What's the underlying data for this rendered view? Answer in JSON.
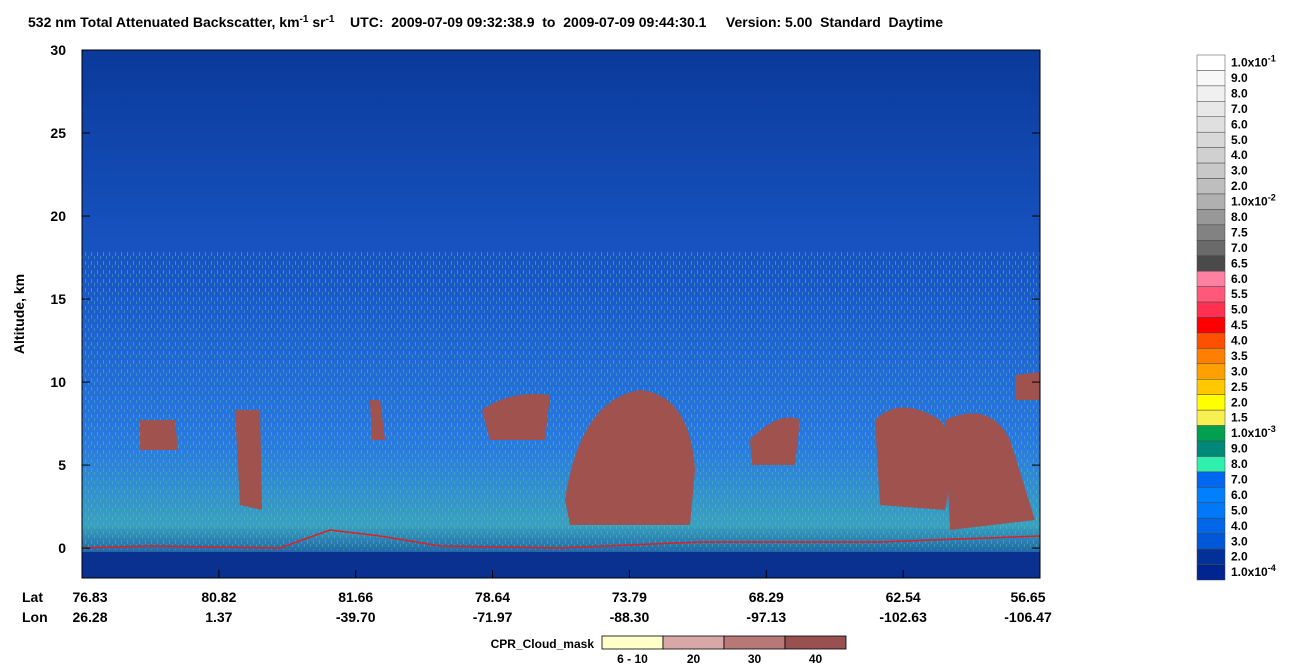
{
  "chart_data": {
    "type": "heatmap",
    "title": [
      {
        "text": "532 nm Total Attenuated Backscatter, km"
      },
      {
        "text": "-1",
        "sup": true
      },
      {
        "text": " sr"
      },
      {
        "text": "-1",
        "sup": true
      },
      {
        "text": "    UTC:  2009-07-09 09:32:38.9  to  2009-07-09 09:44:30.1     Version: 5.00  Standard  Daytime"
      }
    ],
    "y_label": "Altitude, km",
    "ylim": [
      -1.8,
      30
    ],
    "yticks": [
      0,
      5,
      10,
      15,
      20,
      25,
      30
    ],
    "x_rows": [
      {
        "name": "Lat",
        "categories": [
          "76.83",
          "80.82",
          "81.66",
          "78.64",
          "73.79",
          "68.29",
          "62.54",
          "56.65"
        ]
      },
      {
        "name": "Lon",
        "categories": [
          "26.28",
          "1.37",
          "-39.70",
          "-71.97",
          "-88.30",
          "-97.13",
          "-102.63",
          "-106.47"
        ]
      }
    ],
    "colorbar": {
      "labels": [
        {
          "text": "1.0x10",
          "sup": "-1"
        },
        "9.0",
        "8.0",
        "7.0",
        "6.0",
        "5.0",
        "4.0",
        "3.0",
        "2.0",
        {
          "text": "1.0x10",
          "sup": "-2"
        },
        "8.0",
        "7.5",
        "7.0",
        "6.5",
        "6.0",
        "5.5",
        "5.0",
        "4.5",
        "4.0",
        "3.5",
        "3.0",
        "2.5",
        "2.0",
        "1.5",
        {
          "text": "1.0x10",
          "sup": "-3"
        },
        "9.0",
        "8.0",
        "7.0",
        "6.0",
        "5.0",
        "4.0",
        "3.0",
        "2.0",
        {
          "text": "1.0x10",
          "sup": "-4"
        }
      ],
      "colors": [
        "#ffffff",
        "#f8f8f8",
        "#f0f0f0",
        "#e8e8e8",
        "#e0e0e0",
        "#d8d8d8",
        "#d0d0d0",
        "#c8c8c8",
        "#bebebe",
        "#b0b0b0",
        "#989898",
        "#828282",
        "#6a6a6a",
        "#4a4a4a",
        "#ff80a0",
        "#ff5878",
        "#ff3050",
        "#ff0000",
        "#ff5000",
        "#ff8000",
        "#ffa000",
        "#ffc800",
        "#ffff00",
        "#f8f050",
        "#00a050",
        "#008878",
        "#30f0b0",
        "#0068f0",
        "#0080ff",
        "#0078f8",
        "#0068e8",
        "#0058d8",
        "#003098",
        "#002490"
      ]
    },
    "cloud_mask": {
      "title": "CPR_Cloud_mask",
      "labels": [
        "6 - 10",
        "20",
        "30",
        "40"
      ],
      "colors": [
        "#ffffc8",
        "#d8a8a8",
        "#b87878",
        "#985050"
      ]
    }
  }
}
